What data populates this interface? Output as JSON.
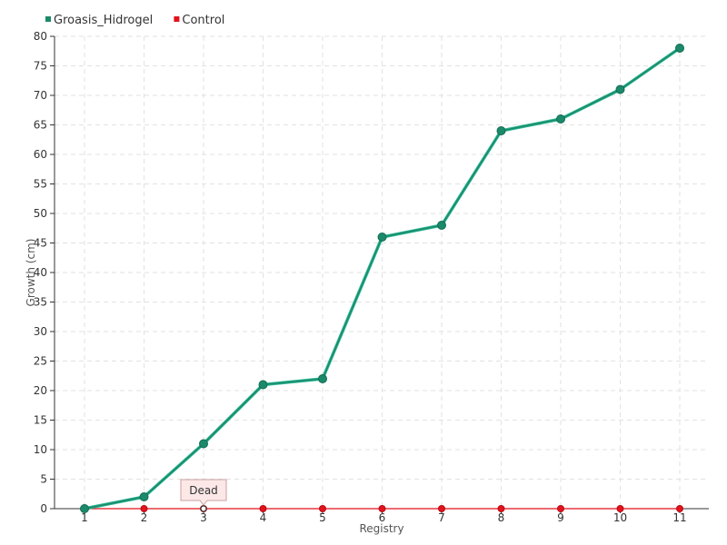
{
  "chart_data": {
    "type": "line",
    "title": "",
    "xlabel": "Registry",
    "ylabel": "Growth (cm)",
    "categories": [
      "1",
      "2",
      "3",
      "4",
      "5",
      "6",
      "7",
      "8",
      "9",
      "10",
      "11"
    ],
    "ylim": [
      0,
      80
    ],
    "y_ticks": [
      0,
      5,
      10,
      15,
      20,
      25,
      30,
      35,
      40,
      45,
      50,
      55,
      60,
      65,
      70,
      75,
      80
    ],
    "grid": true,
    "legend_position": "top-left",
    "series": [
      {
        "name": "Groasis_Hidrogel",
        "color": "#1a8a6a",
        "values": [
          0,
          2,
          11,
          21,
          22,
          46,
          48,
          64,
          66,
          71,
          78
        ]
      },
      {
        "name": "Control",
        "color": "#e3121c",
        "values": [
          0,
          0,
          0,
          0,
          0,
          0,
          0,
          0,
          0,
          0,
          0
        ]
      }
    ],
    "annotations": [
      {
        "text": "Dead",
        "category": "3",
        "value": 0
      }
    ]
  }
}
